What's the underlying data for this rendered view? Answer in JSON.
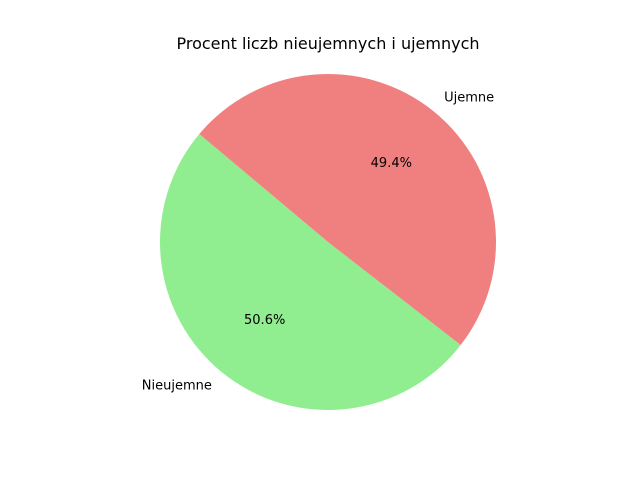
{
  "chart_data": {
    "type": "pie",
    "title": "Procent liczb nieujemnych i ujemnych",
    "categories": [
      "Nieujemne",
      "Ujemne"
    ],
    "values": [
      50.6,
      49.4
    ],
    "percent_labels": [
      "50.6%",
      "49.4%"
    ],
    "colors": [
      "#90ee90",
      "#f08080"
    ],
    "start_angle_deg": 140,
    "direction": "counterclockwise",
    "legend": "none"
  }
}
